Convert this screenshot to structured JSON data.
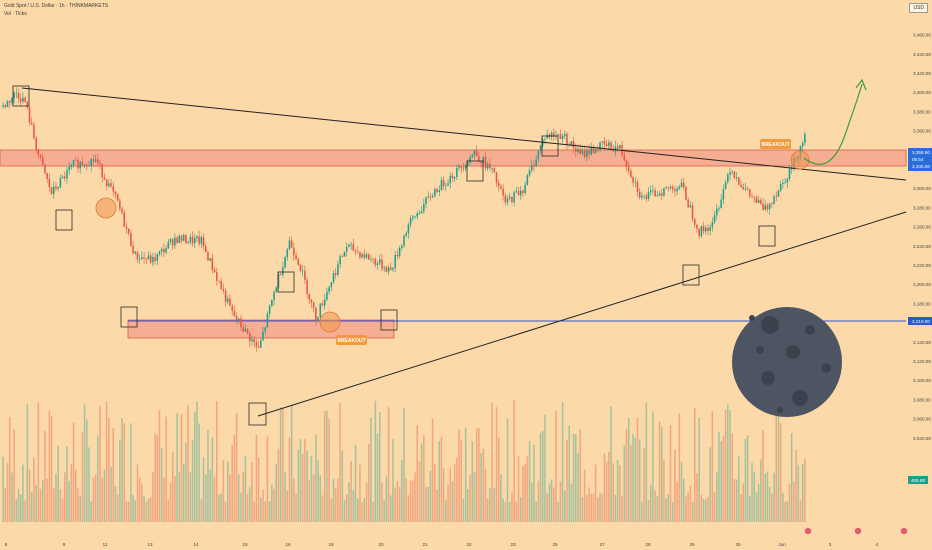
{
  "header": {
    "symbol_line": "Gold Spot / U.S. Dollar · 1h · THINKMARKETS",
    "volume_line": "Vol · Ticks",
    "currency_button": "USD"
  },
  "annotations": {
    "breakout_upper": "BREAKOUT",
    "breakout_lower": "BREAKOUT"
  },
  "price_badges": {
    "upper_line1": "3,356.50",
    "upper_line2": "05:54",
    "upper_line3": "3,345.00",
    "lower": "3,210.00",
    "volume": "405.80"
  },
  "colors": {
    "background": "#fbd9a8",
    "up_candle": "#1e9e8c",
    "down_candle": "#e8553e",
    "zone_fill": "#f28a82",
    "zone_stroke": "#d84e44",
    "trendline": "#222222",
    "support_line": "#2a57d8",
    "arrow": "#3d9e3a",
    "badge_blue": "#2a6cd8",
    "moon": "#4e5562"
  },
  "chart_data": {
    "type": "candlestick",
    "y_axis": {
      "min": 3020,
      "max": 3475,
      "ticks": [
        "3,460.00",
        "3,440.00",
        "3,420.00",
        "3,400.00",
        "3,380.00",
        "3,360.00",
        "3,340.00",
        "3,320.00",
        "3,300.00",
        "3,280.00",
        "3,260.00",
        "3,240.00",
        "3,220.00",
        "3,200.00",
        "3,180.00",
        "3,160.00",
        "3,140.00",
        "3,120.00",
        "3,100.00",
        "3,080.00",
        "3,060.00",
        "3,040.00"
      ]
    },
    "x_axis": {
      "ticks": [
        "8",
        "9",
        "11",
        "13",
        "14",
        "15",
        "16",
        "18",
        "20",
        "21",
        "22",
        "23",
        "25",
        "27",
        "28",
        "29",
        "30",
        "Jun",
        "3",
        "4"
      ]
    },
    "price_path": [
      {
        "t": 0,
        "p": 3385
      },
      {
        "t": 6,
        "p": 3400
      },
      {
        "t": 10,
        "p": 3390
      },
      {
        "t": 16,
        "p": 3335
      },
      {
        "t": 22,
        "p": 3295
      },
      {
        "t": 32,
        "p": 3325
      },
      {
        "t": 42,
        "p": 3330
      },
      {
        "t": 52,
        "p": 3285
      },
      {
        "t": 60,
        "p": 3230
      },
      {
        "t": 68,
        "p": 3225
      },
      {
        "t": 78,
        "p": 3248
      },
      {
        "t": 90,
        "p": 3245
      },
      {
        "t": 104,
        "p": 3170
      },
      {
        "t": 116,
        "p": 3132
      },
      {
        "t": 124,
        "p": 3200
      },
      {
        "t": 130,
        "p": 3245
      },
      {
        "t": 134,
        "p": 3225
      },
      {
        "t": 142,
        "p": 3165
      },
      {
        "t": 150,
        "p": 3210
      },
      {
        "t": 156,
        "p": 3240
      },
      {
        "t": 166,
        "p": 3228
      },
      {
        "t": 176,
        "p": 3215
      },
      {
        "t": 184,
        "p": 3262
      },
      {
        "t": 196,
        "p": 3298
      },
      {
        "t": 206,
        "p": 3318
      },
      {
        "t": 214,
        "p": 3338
      },
      {
        "t": 222,
        "p": 3318
      },
      {
        "t": 228,
        "p": 3285
      },
      {
        "t": 236,
        "p": 3300
      },
      {
        "t": 246,
        "p": 3355
      },
      {
        "t": 254,
        "p": 3356
      },
      {
        "t": 262,
        "p": 3335
      },
      {
        "t": 272,
        "p": 3345
      },
      {
        "t": 280,
        "p": 3342
      },
      {
        "t": 290,
        "p": 3290
      },
      {
        "t": 302,
        "p": 3300
      },
      {
        "t": 308,
        "p": 3303
      },
      {
        "t": 316,
        "p": 3255
      },
      {
        "t": 322,
        "p": 3262
      },
      {
        "t": 330,
        "p": 3322
      },
      {
        "t": 338,
        "p": 3295
      },
      {
        "t": 346,
        "p": 3278
      },
      {
        "t": 352,
        "p": 3300
      },
      {
        "t": 358,
        "p": 3322
      },
      {
        "t": 364,
        "p": 3355
      }
    ],
    "candle_count": 365,
    "upper_zone": [
      3338,
      3356
    ],
    "lower_zone": [
      3196,
      3212
    ],
    "support_level": 3210,
    "volume_levels": [
      0.12,
      0.55
    ],
    "volume_baseline": 405.8
  }
}
